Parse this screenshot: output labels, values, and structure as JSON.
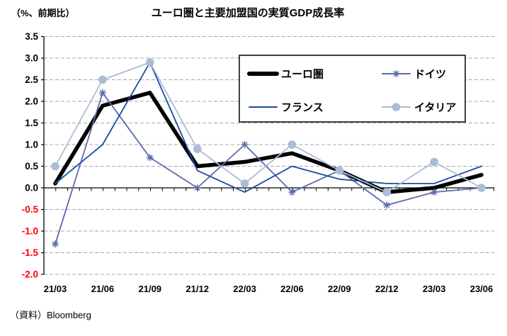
{
  "header": {
    "unit_label": "（%、前期比）",
    "title": "ユーロ圏と主要加盟国の実質GDP成長率"
  },
  "footer": {
    "source": "（資料）Bloomberg"
  },
  "chart_data": {
    "type": "line",
    "title": "ユーロ圏と主要加盟国の実質GDP成長率",
    "unit_label": "（%、前期比）",
    "source": "（資料）Bloomberg",
    "xlabel": "",
    "ylabel": "",
    "categories": [
      "21/03",
      "21/06",
      "21/09",
      "21/12",
      "22/03",
      "22/06",
      "22/09",
      "22/12",
      "23/03",
      "23/06"
    ],
    "series": [
      {
        "name": "ユーロ圏",
        "color": "#000000",
        "line_width": 5.5,
        "marker": "none",
        "values": [
          0.1,
          1.9,
          2.2,
          0.5,
          0.6,
          0.8,
          0.4,
          -0.1,
          0.0,
          0.3
        ]
      },
      {
        "name": "ドイツ",
        "color": "#5c6bac",
        "line_width": 1.8,
        "marker": "asterisk",
        "values": [
          -1.3,
          2.2,
          0.7,
          0.0,
          1.0,
          -0.1,
          0.4,
          -0.4,
          -0.1,
          0.0
        ]
      },
      {
        "name": "フランス",
        "color": "#1a4c9c",
        "line_width": 1.8,
        "marker": "none",
        "values": [
          0.1,
          1.0,
          2.9,
          0.4,
          -0.1,
          0.5,
          0.2,
          0.1,
          0.1,
          0.5
        ]
      },
      {
        "name": "イタリア",
        "color": "#a9bdd6",
        "line_width": 1.8,
        "marker": "circle",
        "values": [
          0.5,
          2.5,
          2.9,
          0.9,
          0.1,
          1.0,
          0.4,
          -0.1,
          0.6,
          0.0
        ]
      }
    ],
    "ylim": [
      -2.0,
      3.5
    ],
    "ytick_step": 0.5,
    "ytick_color_positive": "#000000",
    "ytick_color_negative": "#ff0000",
    "grid": "horizontal-dashed",
    "gridline_color": "#a6a6a6",
    "legend_position": "inside-top-right",
    "legend_order": [
      "ユーロ圏",
      "ドイツ",
      "フランス",
      "イタリア"
    ]
  }
}
